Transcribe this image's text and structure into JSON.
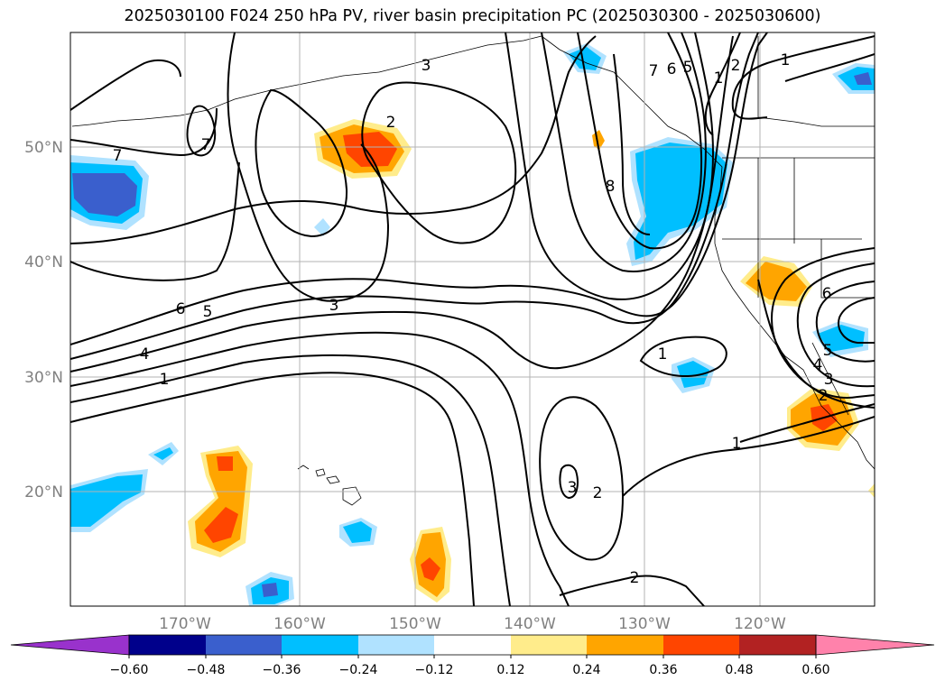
{
  "title": "2025030100 F024 250 hPa PV, river basin precipitation PC (2025030300 - 2025030600)",
  "map": {
    "lon_range": [
      -180,
      -110
    ],
    "lat_range": [
      10,
      60
    ],
    "lat_ticks": [
      {
        "value": 50,
        "label": "50°N"
      },
      {
        "value": 40,
        "label": "40°N"
      },
      {
        "value": 30,
        "label": "30°N"
      },
      {
        "value": 20,
        "label": "20°N"
      }
    ],
    "lon_ticks": [
      {
        "value": -170,
        "label": "170°W"
      },
      {
        "value": -160,
        "label": "160°W"
      },
      {
        "value": -150,
        "label": "150°W"
      },
      {
        "value": -140,
        "label": "140°W"
      },
      {
        "value": -130,
        "label": "130°W"
      },
      {
        "value": -120,
        "label": "120°W"
      }
    ],
    "grid": true,
    "contour_variable": "250 hPa PV",
    "fill_variable": "river basin precipitation PC",
    "contour_labels": [
      "7",
      "7",
      "3",
      "2",
      "1",
      "7",
      "6",
      "5",
      "2",
      "1",
      "8",
      "6",
      "5",
      "3",
      "4",
      "1",
      "1",
      "6",
      "5",
      "4",
      "3",
      "2",
      "1",
      "3",
      "2",
      "2"
    ]
  },
  "colorbar": {
    "ticks": [
      "−0.60",
      "−0.48",
      "−0.36",
      "−0.24",
      "−0.12",
      "0.12",
      "0.24",
      "0.36",
      "0.48",
      "0.60"
    ],
    "colors": [
      "#9932cc",
      "#00008b",
      "#3a5fcd",
      "#00bfff",
      "#b0e2ff",
      "#ffffff",
      "#ffec8b",
      "#ffa500",
      "#ff4500",
      "#b22222",
      "#ff82ab"
    ],
    "extend": "both"
  }
}
